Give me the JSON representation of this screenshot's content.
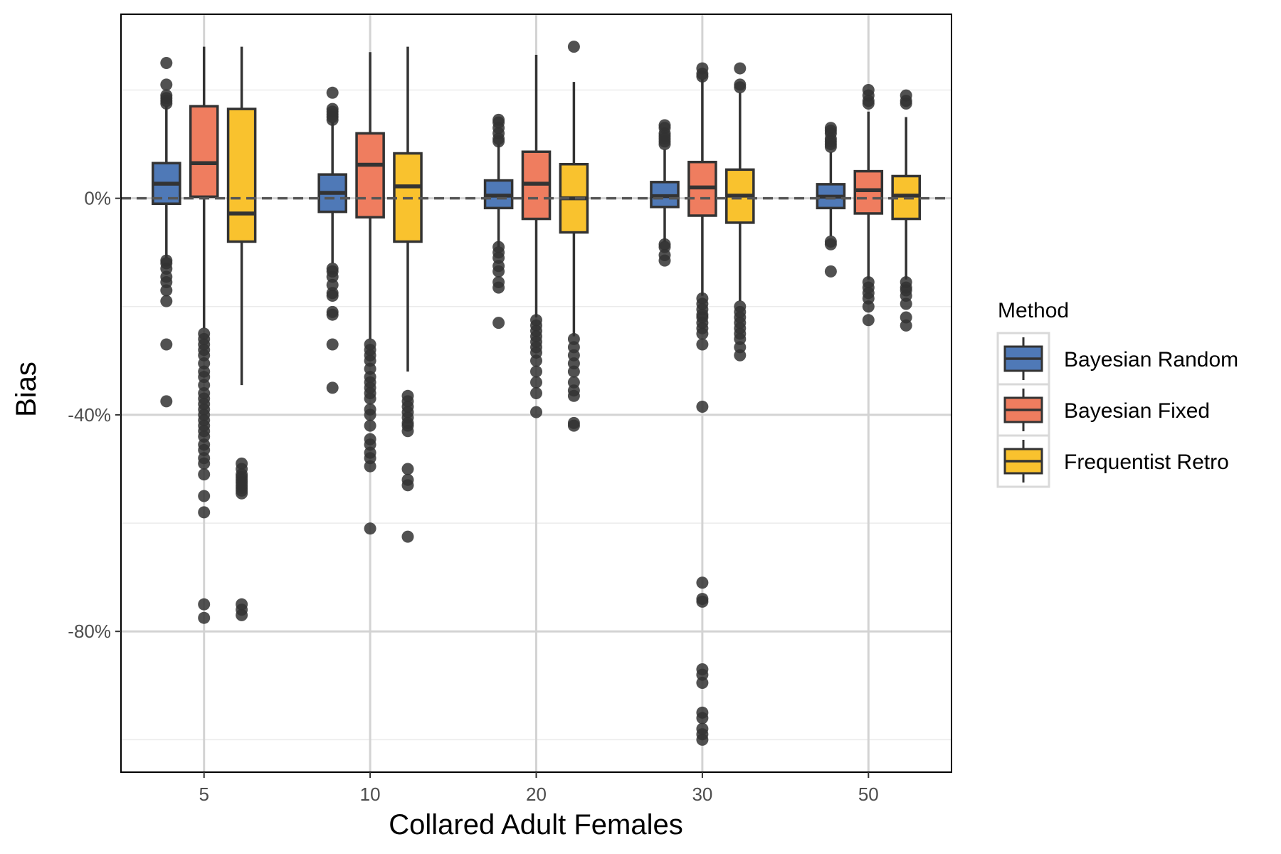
{
  "chart_data": {
    "type": "boxplot",
    "xlabel": "Collared Adult Females",
    "ylabel": "Bias",
    "categories": [
      "5",
      "10",
      "20",
      "30",
      "50"
    ],
    "ylim": [
      -106,
      34
    ],
    "y_ticks": [
      0,
      -40,
      -80
    ],
    "y_tick_labels": [
      "0%",
      "-40%",
      "-80%"
    ],
    "reference_line": 0,
    "grid": true,
    "legend": {
      "title": "Method",
      "position": "right"
    },
    "series": [
      {
        "name": "Bayesian Random",
        "color": "#4f79b7",
        "boxes": [
          {
            "whisker_low": -11,
            "q1": -1,
            "median": 2.7,
            "q3": 6.5,
            "whisker_high": 17,
            "outliers": [
              25,
              21,
              19,
              18.5,
              18,
              17.5,
              -11.5,
              -12,
              -13,
              -14.5,
              -15.5,
              -17,
              -19,
              -27,
              -37.5
            ]
          },
          {
            "whisker_low": -12,
            "q1": -2.5,
            "median": 1,
            "q3": 4.4,
            "whisker_high": 14,
            "outliers": [
              19.5,
              16.5,
              16,
              15.5,
              15,
              14.5,
              -13,
              -13.5,
              -14.5,
              -16,
              -17.5,
              -18,
              -21,
              -21.5,
              -27,
              -35
            ]
          },
          {
            "whisker_low": -9,
            "q1": -1.8,
            "median": 0.5,
            "q3": 3.3,
            "whisker_high": 10,
            "outliers": [
              14.5,
              14,
              13,
              12,
              11,
              10.5,
              -9,
              -10,
              -11,
              -12.5,
              -13.5,
              -15.5,
              -16.5,
              -23
            ]
          },
          {
            "whisker_low": -8,
            "q1": -1.6,
            "median": 0.4,
            "q3": 3,
            "whisker_high": 9,
            "outliers": [
              13.5,
              13,
              12,
              11.5,
              11,
              10.5,
              10,
              -8.5,
              -9,
              -10.5,
              -11.5
            ]
          },
          {
            "whisker_low": -7,
            "q1": -1.8,
            "median": 0.3,
            "q3": 2.6,
            "whisker_high": 8.5,
            "outliers": [
              13,
              12.5,
              12,
              11,
              10.5,
              10,
              9.5,
              -8,
              -8.5,
              -13.5
            ]
          }
        ]
      },
      {
        "name": "Bayesian Fixed",
        "color": "#ef7d5f",
        "boxes": [
          {
            "whisker_low": -24,
            "q1": 0.3,
            "median": 6.5,
            "q3": 17,
            "whisker_high": 28,
            "outliers": [
              -25,
              -26,
              -27,
              -28,
              -29,
              -30.5,
              -32,
              -33,
              -34.5,
              -36,
              -37,
              -38,
              -39,
              -40,
              -41,
              -42,
              -43,
              -44,
              -45.5,
              -46.5,
              -48,
              -49,
              -51,
              -55,
              -58,
              -75,
              -77.5
            ]
          },
          {
            "whisker_low": -26,
            "q1": -3.5,
            "median": 6.2,
            "q3": 12,
            "whisker_high": 27,
            "outliers": [
              -27,
              -28,
              -29,
              -30,
              -31.5,
              -33,
              -34,
              -35,
              -36,
              -37,
              -39,
              -40,
              -42,
              -44.5,
              -45.5,
              -47,
              -48,
              -49.5,
              -61
            ]
          },
          {
            "whisker_low": -22,
            "q1": -3.8,
            "median": 2.7,
            "q3": 8.6,
            "whisker_high": 26.5,
            "outliers": [
              -22.5,
              -23.5,
              -24.5,
              -25.5,
              -26.5,
              -27.5,
              -28.5,
              -30,
              -32,
              -34,
              -36,
              -39.5
            ]
          },
          {
            "whisker_low": -18,
            "q1": -3.2,
            "median": 2,
            "q3": 6.7,
            "whisker_high": 22,
            "outliers": [
              24,
              23,
              22.5,
              -18.5,
              -19.5,
              -20.5,
              -21.5,
              -22,
              -23,
              -24,
              -25,
              -27,
              -38.5,
              -71,
              -74,
              -74.5,
              -87,
              -88,
              -89.5,
              -95,
              -96,
              -98,
              -99,
              -100
            ]
          },
          {
            "whisker_low": -15,
            "q1": -2.8,
            "median": 1.5,
            "q3": 5,
            "whisker_high": 16,
            "outliers": [
              20,
              19,
              18,
              17.5,
              -15.5,
              -16.5,
              -17.5,
              -18.5,
              -20,
              -22.5
            ]
          }
        ]
      },
      {
        "name": "Frequentist Retro",
        "color": "#f9c22e",
        "boxes": [
          {
            "whisker_low": -34.5,
            "q1": -8,
            "median": -2.8,
            "q3": 16.5,
            "whisker_high": 28,
            "outliers": [
              -49,
              -50,
              -51,
              -51.5,
              -52,
              -52.5,
              -53,
              -53.5,
              -54,
              -54.5,
              -75,
              -76,
              -77
            ]
          },
          {
            "whisker_low": -32,
            "q1": -8,
            "median": 2.2,
            "q3": 8.3,
            "whisker_high": 28,
            "outliers": [
              -36.5,
              -37.5,
              -38.5,
              -39.5,
              -40.5,
              -41.5,
              -42,
              -43,
              -50,
              -52,
              -53,
              -62.5
            ]
          },
          {
            "whisker_low": -25.5,
            "q1": -6.3,
            "median": 0,
            "q3": 6.3,
            "whisker_high": 21.5,
            "outliers": [
              28,
              -26,
              -27.5,
              -29,
              -30.5,
              -32,
              -34,
              -35.5,
              -36.5,
              -41.5,
              -42
            ]
          },
          {
            "whisker_low": -19,
            "q1": -4.5,
            "median": 0.5,
            "q3": 5.3,
            "whisker_high": 19.5,
            "outliers": [
              24,
              21,
              20.5,
              -20,
              -21,
              -22,
              -23,
              -24,
              -25,
              -26,
              -27.5,
              -29
            ]
          },
          {
            "whisker_low": -15,
            "q1": -3.8,
            "median": 0.5,
            "q3": 4.1,
            "whisker_high": 15,
            "outliers": [
              19,
              18,
              17.5,
              -15.5,
              -16.5,
              -17,
              -18,
              -19.5,
              -22,
              -23.5
            ]
          }
        ]
      }
    ]
  }
}
